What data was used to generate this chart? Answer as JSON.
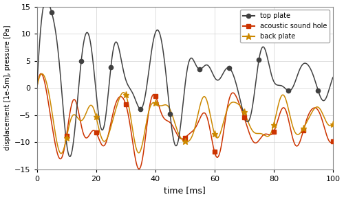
{
  "title": "",
  "xlabel": "time [ms]",
  "ylabel": "displacement [1e-5m], pressure [Pa]",
  "xlim": [
    0,
    100
  ],
  "ylim": [
    -15,
    15
  ],
  "yticks": [
    -15,
    -10,
    -5,
    0,
    5,
    10,
    15
  ],
  "xticks": [
    0,
    20,
    40,
    60,
    80,
    100
  ],
  "legend_labels": [
    "top plate",
    "acoustic sound hole",
    "back plate"
  ],
  "line_colors": [
    "#404040",
    "#cc3300",
    "#cc8800"
  ],
  "marker_styles": [
    "o",
    "s",
    "*"
  ],
  "background_color": "#ffffff",
  "grid_color": "#d0d0d0",
  "figsize": [
    5.0,
    2.9
  ],
  "dpi": 100
}
